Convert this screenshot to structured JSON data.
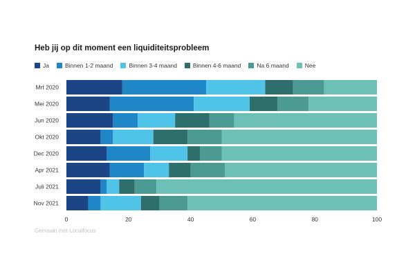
{
  "chart_data": {
    "type": "bar",
    "orientation": "horizontal",
    "stacked": true,
    "title": "Heb jij op dit moment een liquiditeitsprobleem",
    "categories": [
      "Mrt 2020",
      "Mei 2020",
      "Jun 2020",
      "Okt 2020",
      "Dec 2020",
      "Apr 2021",
      "Juli 2021",
      "Nov 2021"
    ],
    "series": [
      {
        "name": "Ja",
        "color": "#1c4587",
        "values": [
          18,
          14,
          15,
          11,
          13,
          14,
          11,
          7
        ]
      },
      {
        "name": "Binnen 1-2 maand",
        "color": "#1f86c8",
        "values": [
          27,
          27,
          8,
          4,
          14,
          11,
          2,
          4
        ]
      },
      {
        "name": "Binnen 3-4 maand",
        "color": "#50c3e8",
        "values": [
          19,
          18,
          12,
          13,
          12,
          8,
          4,
          13
        ]
      },
      {
        "name": "Binnen 4-6 maand",
        "color": "#2e6e6d",
        "values": [
          9,
          9,
          11,
          11,
          4,
          7,
          5,
          6
        ]
      },
      {
        "name": "Na 6 maand",
        "color": "#4b9b94",
        "values": [
          10,
          10,
          8,
          11,
          7,
          11,
          7,
          9
        ]
      },
      {
        "name": "Nee",
        "color": "#6cc0b6",
        "values": [
          17,
          22,
          46,
          50,
          50,
          49,
          71,
          61
        ]
      }
    ],
    "xlim": [
      0,
      100
    ],
    "xticks": [
      "0",
      "20",
      "40",
      "60",
      "80",
      "100"
    ],
    "legend_position": "top-left",
    "grid": false
  },
  "credit": "Gemaakt met Localfocus"
}
